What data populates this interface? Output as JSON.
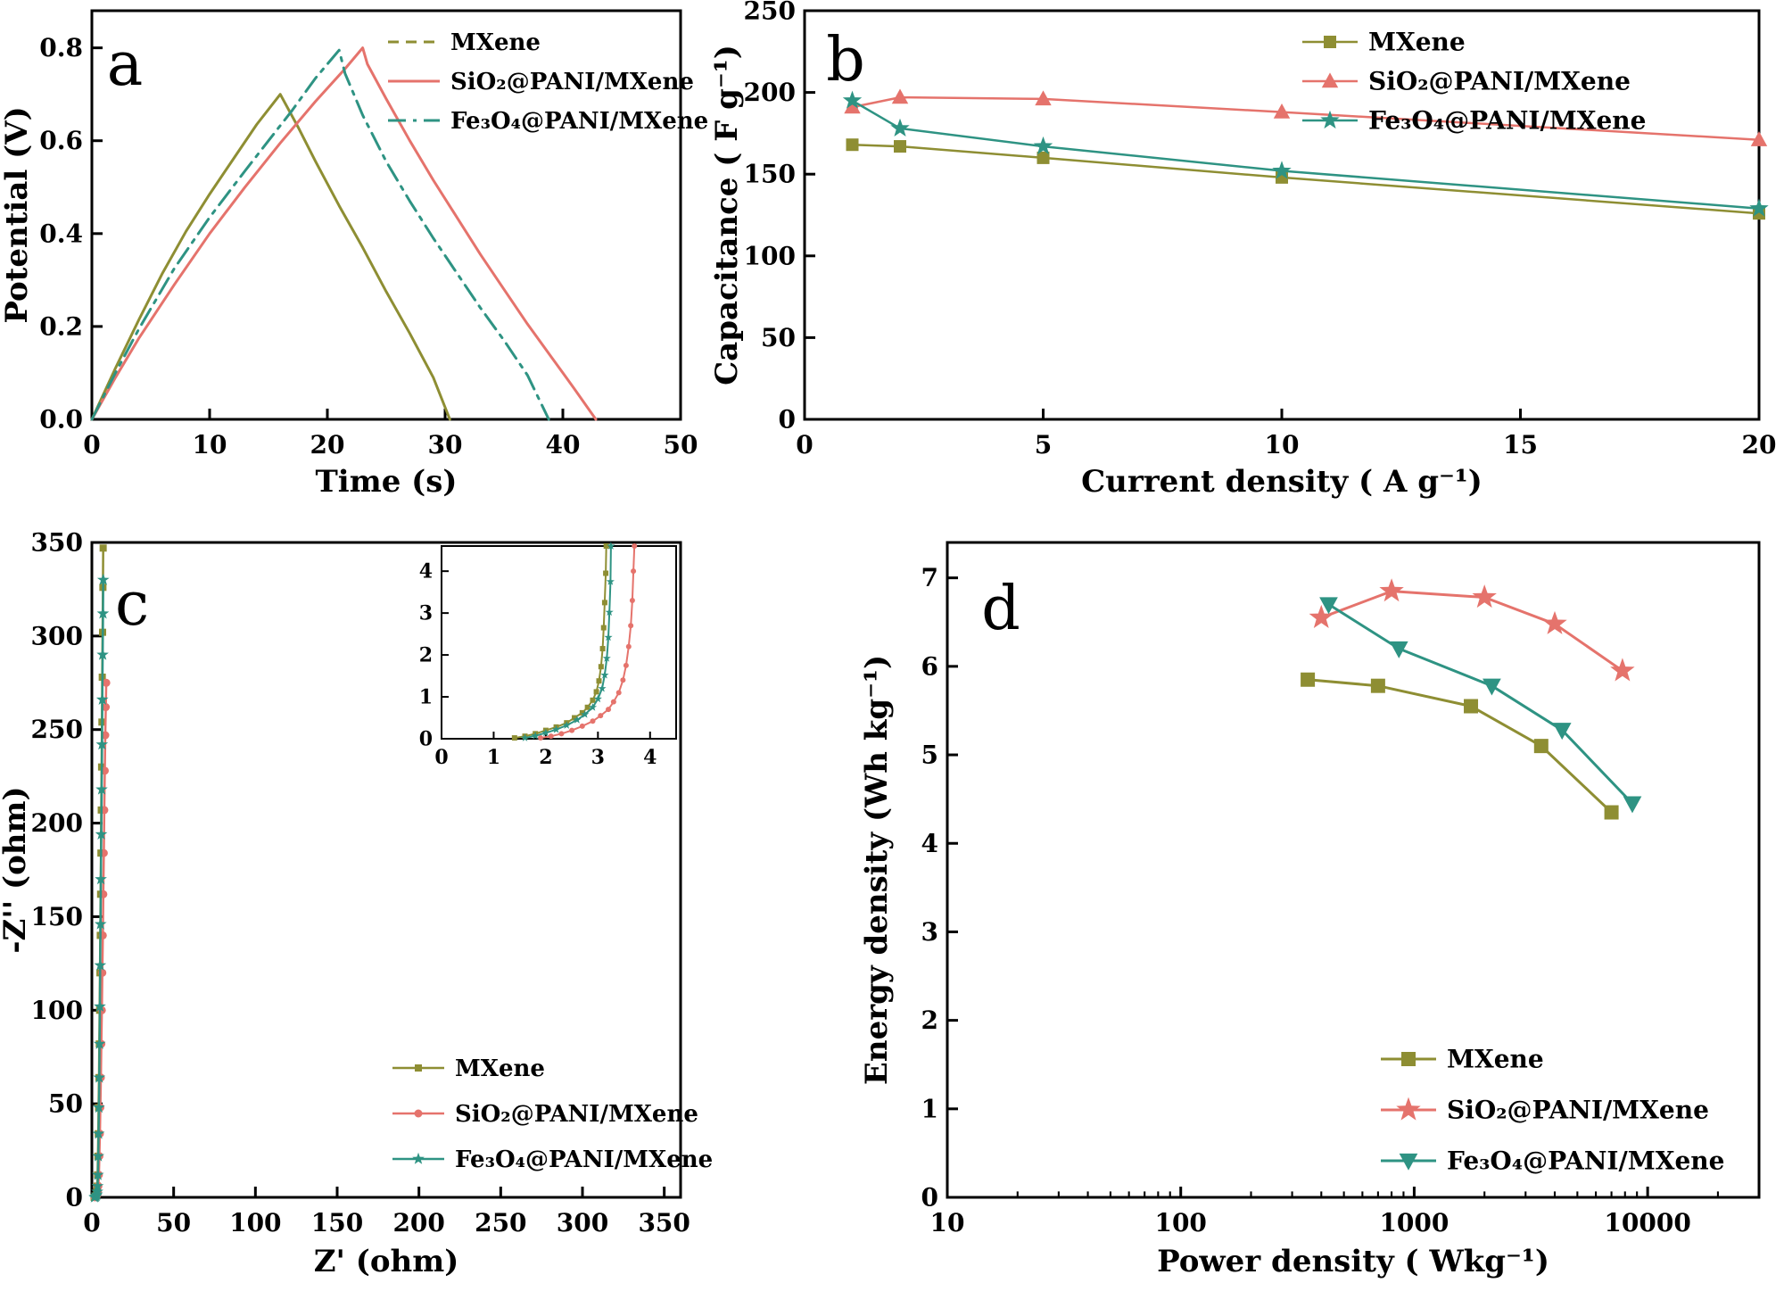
{
  "figure": {
    "background": "#ffffff",
    "panel_letters": [
      "a",
      "b",
      "c",
      "d"
    ],
    "series_colors": {
      "mxene": "#8e8e33",
      "sio2_pani_mxene": "#e5736c",
      "fe3o4_pani_mxene": "#2e9383"
    }
  },
  "chart_data": [
    {
      "id": "a",
      "type": "line",
      "panel_letter": "a",
      "xlabel": "Time (s)",
      "ylabel": "Potential (V)",
      "xlim": [
        0,
        50
      ],
      "ylim": [
        0,
        0.88
      ],
      "xticks": [
        0,
        10,
        20,
        30,
        40,
        50
      ],
      "yticks": [
        0,
        0.2,
        0.4,
        0.6,
        0.8
      ],
      "ytick_labels": [
        "0.0",
        "0.2",
        "0.4",
        "0.6",
        "0.8"
      ],
      "legend_position": "top-right",
      "series": [
        {
          "name": "MXene",
          "color": "#8e8e33",
          "lw": 3,
          "legend_dash": "12,8",
          "points": [
            [
              0,
              0
            ],
            [
              2,
              0.11
            ],
            [
              4,
              0.215
            ],
            [
              6,
              0.315
            ],
            [
              8,
              0.405
            ],
            [
              10,
              0.485
            ],
            [
              12,
              0.56
            ],
            [
              14,
              0.635
            ],
            [
              16,
              0.7
            ],
            [
              17.5,
              0.63
            ],
            [
              19,
              0.555
            ],
            [
              21,
              0.46
            ],
            [
              23,
              0.37
            ],
            [
              25,
              0.275
            ],
            [
              27,
              0.185
            ],
            [
              29,
              0.09
            ],
            [
              30.4,
              0
            ]
          ]
        },
        {
          "name": "SiO₂@PANI/MXene",
          "color": "#e5736c",
          "lw": 3,
          "points": [
            [
              0,
              0
            ],
            [
              2,
              0.09
            ],
            [
              4,
              0.175
            ],
            [
              7,
              0.29
            ],
            [
              10,
              0.4
            ],
            [
              13,
              0.5
            ],
            [
              16,
              0.595
            ],
            [
              19,
              0.685
            ],
            [
              21.5,
              0.755
            ],
            [
              23,
              0.8
            ],
            [
              23.4,
              0.765
            ],
            [
              25,
              0.69
            ],
            [
              27,
              0.6
            ],
            [
              29,
              0.515
            ],
            [
              31,
              0.435
            ],
            [
              33,
              0.355
            ],
            [
              35,
              0.28
            ],
            [
              37,
              0.205
            ],
            [
              39,
              0.135
            ],
            [
              41,
              0.065
            ],
            [
              42.8,
              0
            ]
          ]
        },
        {
          "name": "Fe₃O₄@PANI/MXene",
          "color": "#2e9383",
          "lw": 3,
          "dash": "20,8,4,8",
          "points": [
            [
              0,
              0
            ],
            [
              2,
              0.1
            ],
            [
              4,
              0.195
            ],
            [
              7,
              0.325
            ],
            [
              10,
              0.435
            ],
            [
              13,
              0.535
            ],
            [
              15,
              0.6
            ],
            [
              17,
              0.665
            ],
            [
              19,
              0.735
            ],
            [
              20.5,
              0.78
            ],
            [
              21,
              0.795
            ],
            [
              21.5,
              0.745
            ],
            [
              23,
              0.655
            ],
            [
              25,
              0.555
            ],
            [
              27,
              0.47
            ],
            [
              29,
              0.39
            ],
            [
              31,
              0.315
            ],
            [
              33,
              0.24
            ],
            [
              35,
              0.17
            ],
            [
              37,
              0.095
            ],
            [
              38.8,
              0
            ]
          ]
        }
      ]
    },
    {
      "id": "b",
      "type": "line",
      "panel_letter": "b",
      "xlabel": "Current density ( A g⁻¹)",
      "ylabel": "Capacitance ( F g⁻¹)",
      "xlim": [
        0,
        20
      ],
      "ylim": [
        0,
        250
      ],
      "xticks": [
        0,
        5,
        10,
        15,
        20
      ],
      "yticks": [
        0,
        50,
        100,
        150,
        200,
        250
      ],
      "legend_position": "top-right",
      "series": [
        {
          "name": "MXene",
          "color": "#8e8e33",
          "lw": 2.5,
          "marker": "square",
          "msize": 7,
          "points": [
            [
              1,
              168
            ],
            [
              2,
              167
            ],
            [
              5,
              160
            ],
            [
              10,
              148
            ],
            [
              20,
              126
            ]
          ]
        },
        {
          "name": "SiO₂@PANI/MXene",
          "color": "#e5736c",
          "lw": 2.5,
          "marker": "triangle-up",
          "msize": 8,
          "points": [
            [
              1,
              191
            ],
            [
              2,
              197
            ],
            [
              5,
              196
            ],
            [
              10,
              188
            ],
            [
              20,
              171
            ]
          ]
        },
        {
          "name": "Fe₃O₄@PANI/MXene",
          "color": "#2e9383",
          "lw": 2.5,
          "marker": "star",
          "msize": 7,
          "points": [
            [
              1,
              195
            ],
            [
              2,
              178
            ],
            [
              5,
              167
            ],
            [
              10,
              152
            ],
            [
              20,
              129
            ]
          ]
        }
      ]
    },
    {
      "id": "c",
      "type": "line",
      "panel_letter": "c",
      "xlabel": "Z' (ohm)",
      "ylabel": "-Z'' (ohm)",
      "xlim": [
        0,
        360
      ],
      "ylim": [
        0,
        350
      ],
      "xticks": [
        0,
        50,
        100,
        150,
        200,
        250,
        300,
        350
      ],
      "yticks": [
        0,
        50,
        100,
        150,
        200,
        250,
        300,
        350
      ],
      "legend_position": "bottom-right",
      "series": [
        {
          "name": "MXene",
          "color": "#8e8e33",
          "lw": 2.5,
          "marker": "square",
          "msize": 4,
          "points": [
            [
              1.4,
              0
            ],
            [
              2,
              0.3
            ],
            [
              2.5,
              0.8
            ],
            [
              2.9,
              1.5
            ],
            [
              3.1,
              3
            ],
            [
              3.3,
              6
            ],
            [
              3.5,
              12
            ],
            [
              3.7,
              22
            ],
            [
              3.9,
              34
            ],
            [
              4.1,
              48
            ],
            [
              4.35,
              64
            ],
            [
              4.55,
              82
            ],
            [
              4.75,
              100
            ],
            [
              4.95,
              120
            ],
            [
              5.15,
              140
            ],
            [
              5.35,
              162
            ],
            [
              5.55,
              184
            ],
            [
              5.75,
              207
            ],
            [
              5.95,
              230
            ],
            [
              6.15,
              254
            ],
            [
              6.35,
              278
            ],
            [
              6.55,
              302
            ],
            [
              6.75,
              326
            ],
            [
              6.9,
              347
            ]
          ]
        },
        {
          "name": "SiO₂@PANI/MXene",
          "color": "#e5736c",
          "lw": 2.5,
          "marker": "circle",
          "msize": 4.5,
          "points": [
            [
              1.9,
              0
            ],
            [
              2.5,
              0.3
            ],
            [
              3,
              0.8
            ],
            [
              3.4,
              1.5
            ],
            [
              3.7,
              3
            ],
            [
              4,
              6
            ],
            [
              4.3,
              12
            ],
            [
              4.6,
              22
            ],
            [
              4.9,
              34
            ],
            [
              5.2,
              48
            ],
            [
              5.5,
              64
            ],
            [
              5.8,
              82
            ],
            [
              6.1,
              100
            ],
            [
              6.4,
              120
            ],
            [
              6.7,
              140
            ],
            [
              7,
              162
            ],
            [
              7.3,
              184
            ],
            [
              7.6,
              207
            ],
            [
              7.9,
              228
            ],
            [
              8.2,
              247
            ],
            [
              8.5,
              262
            ],
            [
              8.8,
              275
            ]
          ]
        },
        {
          "name": "Fe₃O₄@PANI/MXene",
          "color": "#2e9383",
          "lw": 2.5,
          "marker": "star",
          "msize": 4.5,
          "points": [
            [
              1.6,
              0
            ],
            [
              2.2,
              0.3
            ],
            [
              2.7,
              0.8
            ],
            [
              3.1,
              1.5
            ],
            [
              3.3,
              3
            ],
            [
              3.5,
              6
            ],
            [
              3.7,
              12
            ],
            [
              3.9,
              22
            ],
            [
              4.1,
              34
            ],
            [
              4.3,
              48
            ],
            [
              4.5,
              64
            ],
            [
              4.7,
              82
            ],
            [
              4.9,
              102
            ],
            [
              5.1,
              124
            ],
            [
              5.3,
              146
            ],
            [
              5.5,
              170
            ],
            [
              5.75,
              194
            ],
            [
              6,
              218
            ],
            [
              6.2,
              242
            ],
            [
              6.4,
              266
            ],
            [
              6.6,
              290
            ],
            [
              6.8,
              312
            ],
            [
              6.95,
              330
            ]
          ]
        }
      ],
      "inset": {
        "type": "line",
        "xlim": [
          0,
          4.5
        ],
        "ylim": [
          0,
          4.6
        ],
        "xticks": [
          0,
          1,
          2,
          3,
          4
        ],
        "yticks": [
          0,
          1,
          2,
          3,
          4
        ],
        "series": [
          {
            "name": "MXene",
            "color": "#8e8e33",
            "lw": 2,
            "marker": "square",
            "msize": 3,
            "points": [
              [
                1.4,
                0.02
              ],
              [
                1.6,
                0.06
              ],
              [
                1.8,
                0.12
              ],
              [
                2,
                0.2
              ],
              [
                2.2,
                0.28
              ],
              [
                2.4,
                0.38
              ],
              [
                2.55,
                0.5
              ],
              [
                2.7,
                0.62
              ],
              [
                2.8,
                0.75
              ],
              [
                2.9,
                0.92
              ],
              [
                2.97,
                1.12
              ],
              [
                3.02,
                1.38
              ],
              [
                3.06,
                1.72
              ],
              [
                3.09,
                2.15
              ],
              [
                3.11,
                2.65
              ],
              [
                3.13,
                3.25
              ],
              [
                3.15,
                3.95
              ],
              [
                3.16,
                4.6
              ]
            ]
          },
          {
            "name": "SiO₂@PANI/MXene",
            "color": "#e5736c",
            "lw": 2,
            "marker": "circle",
            "msize": 3,
            "points": [
              [
                1.9,
                0.02
              ],
              [
                2.1,
                0.06
              ],
              [
                2.3,
                0.12
              ],
              [
                2.5,
                0.2
              ],
              [
                2.7,
                0.3
              ],
              [
                2.9,
                0.42
              ],
              [
                3.05,
                0.55
              ],
              [
                3.2,
                0.7
              ],
              [
                3.3,
                0.88
              ],
              [
                3.4,
                1.1
              ],
              [
                3.48,
                1.4
              ],
              [
                3.54,
                1.75
              ],
              [
                3.59,
                2.2
              ],
              [
                3.63,
                2.7
              ],
              [
                3.66,
                3.3
              ],
              [
                3.68,
                4
              ],
              [
                3.7,
                4.6
              ]
            ]
          },
          {
            "name": "Fe₃O₄@PANI/MXene",
            "color": "#2e9383",
            "lw": 2,
            "marker": "star",
            "msize": 3,
            "points": [
              [
                1.6,
                0.02
              ],
              [
                1.8,
                0.07
              ],
              [
                2,
                0.14
              ],
              [
                2.2,
                0.22
              ],
              [
                2.4,
                0.32
              ],
              [
                2.6,
                0.45
              ],
              [
                2.75,
                0.58
              ],
              [
                2.9,
                0.75
              ],
              [
                3,
                0.95
              ],
              [
                3.08,
                1.2
              ],
              [
                3.13,
                1.52
              ],
              [
                3.17,
                1.92
              ],
              [
                3.2,
                2.42
              ],
              [
                3.22,
                3.02
              ],
              [
                3.24,
                3.75
              ],
              [
                3.25,
                4.6
              ]
            ]
          }
        ]
      }
    },
    {
      "id": "d",
      "type": "line",
      "panel_letter": "d",
      "xscale": "log",
      "xlabel": "Power density ( Wkg⁻¹)",
      "ylabel": "Energy density (Wh kg⁻¹)",
      "xlim": [
        10,
        30000
      ],
      "ylim": [
        0,
        7.4
      ],
      "xticks": [
        10,
        100,
        1000,
        10000
      ],
      "xtick_labels": [
        "10",
        "100",
        "1000",
        "10000"
      ],
      "yticks": [
        0,
        1,
        2,
        3,
        4,
        5,
        6,
        7
      ],
      "legend_position": "bottom-right",
      "series": [
        {
          "name": "MXene",
          "color": "#8e8e33",
          "lw": 3,
          "marker": "square",
          "msize": 8,
          "points": [
            [
              350,
              5.85
            ],
            [
              700,
              5.78
            ],
            [
              1750,
              5.55
            ],
            [
              3500,
              5.1
            ],
            [
              7000,
              4.35
            ]
          ]
        },
        {
          "name": "SiO₂@PANI/MXene",
          "color": "#e5736c",
          "lw": 3,
          "marker": "star",
          "msize": 9,
          "points": [
            [
              400,
              6.55
            ],
            [
              800,
              6.85
            ],
            [
              2000,
              6.78
            ],
            [
              4000,
              6.48
            ],
            [
              7800,
              5.95
            ]
          ]
        },
        {
          "name": "Fe₃O₄@PANI/MXene",
          "color": "#2e9383",
          "lw": 3,
          "marker": "triangle-down",
          "msize": 9,
          "points": [
            [
              430,
              6.7
            ],
            [
              860,
              6.2
            ],
            [
              2150,
              5.78
            ],
            [
              4300,
              5.28
            ],
            [
              8600,
              4.45
            ]
          ]
        }
      ]
    }
  ]
}
